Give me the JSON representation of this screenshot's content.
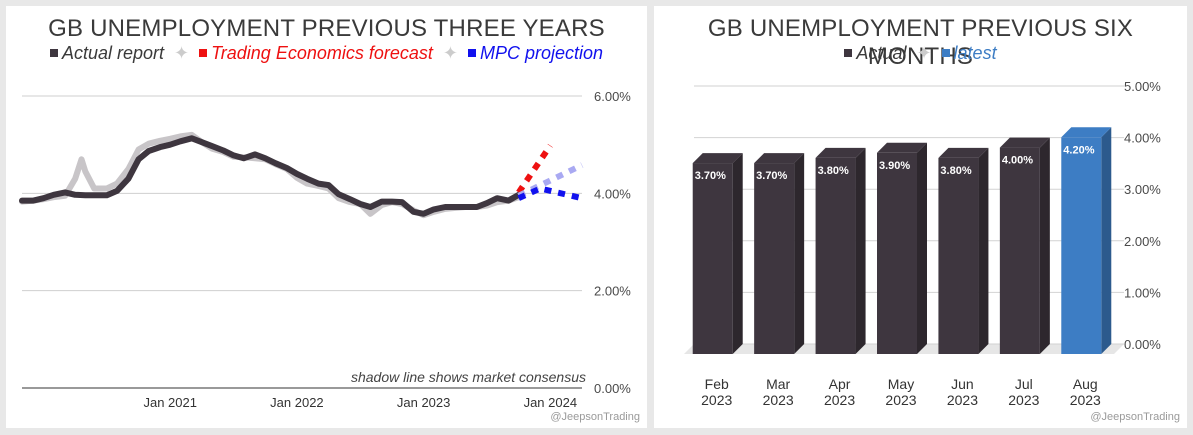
{
  "chart_data": [
    {
      "type": "line",
      "title": "GB UNEMPLOYMENT PREVIOUS THREE YEARS",
      "legend": [
        {
          "label": "Actual report",
          "color": "#3e363f"
        },
        {
          "label": "Trading Economics forecast",
          "color": "#ee1111"
        },
        {
          "label": "MPC projection",
          "color": "#1111ee"
        }
      ],
      "y_ticks": [
        "6.00%",
        "4.00%",
        "2.00%",
        "0.00%"
      ],
      "x_ticks": [
        {
          "label": "Jan 2021",
          "t": 2021.0
        },
        {
          "label": "Jan 2022",
          "t": 2022.0
        },
        {
          "label": "Jan 2023",
          "t": 2023.0
        },
        {
          "label": "Jan 2024",
          "t": 2024.0
        }
      ],
      "ylim": [
        0,
        6
      ],
      "xlim": [
        2019.83,
        2024.25
      ],
      "annotation": "shadow line shows market consensus",
      "watermark": "@JeepsonTrading",
      "series": [
        {
          "name": "Actual report",
          "color": "#3e363f",
          "points": [
            [
              2019.83,
              3.85
            ],
            [
              2019.92,
              3.85
            ],
            [
              2020.0,
              3.9
            ],
            [
              2020.08,
              3.97
            ],
            [
              2020.17,
              4.02
            ],
            [
              2020.25,
              3.97
            ],
            [
              2020.33,
              3.96
            ],
            [
              2020.42,
              3.96
            ],
            [
              2020.5,
              3.96
            ],
            [
              2020.58,
              4.05
            ],
            [
              2020.67,
              4.3
            ],
            [
              2020.75,
              4.7
            ],
            [
              2020.83,
              4.87
            ],
            [
              2020.92,
              4.95
            ],
            [
              2021.0,
              5.0
            ],
            [
              2021.08,
              5.07
            ],
            [
              2021.17,
              5.13
            ],
            [
              2021.25,
              5.05
            ],
            [
              2021.33,
              4.97
            ],
            [
              2021.42,
              4.88
            ],
            [
              2021.5,
              4.78
            ],
            [
              2021.58,
              4.72
            ],
            [
              2021.67,
              4.8
            ],
            [
              2021.75,
              4.72
            ],
            [
              2021.83,
              4.62
            ],
            [
              2021.92,
              4.52
            ],
            [
              2022.0,
              4.4
            ],
            [
              2022.08,
              4.3
            ],
            [
              2022.17,
              4.2
            ],
            [
              2022.25,
              4.17
            ],
            [
              2022.33,
              3.98
            ],
            [
              2022.42,
              3.88
            ],
            [
              2022.5,
              3.78
            ],
            [
              2022.58,
              3.72
            ],
            [
              2022.67,
              3.83
            ],
            [
              2022.75,
              3.83
            ],
            [
              2022.83,
              3.82
            ],
            [
              2022.92,
              3.62
            ],
            [
              2023.0,
              3.58
            ],
            [
              2023.08,
              3.67
            ],
            [
              2023.17,
              3.72
            ],
            [
              2023.25,
              3.72
            ],
            [
              2023.33,
              3.72
            ],
            [
              2023.42,
              3.72
            ],
            [
              2023.5,
              3.8
            ],
            [
              2023.58,
              3.9
            ],
            [
              2023.67,
              3.85
            ],
            [
              2023.75,
              3.97
            ]
          ]
        },
        {
          "name": "Market consensus",
          "color": "#c8c5c8",
          "points": [
            [
              2019.83,
              3.83
            ],
            [
              2019.92,
              3.85
            ],
            [
              2020.0,
              3.88
            ],
            [
              2020.08,
              3.92
            ],
            [
              2020.17,
              3.95
            ],
            [
              2020.25,
              4.3
            ],
            [
              2020.3,
              4.7
            ],
            [
              2020.33,
              4.45
            ],
            [
              2020.4,
              4.1
            ],
            [
              2020.5,
              4.1
            ],
            [
              2020.58,
              4.2
            ],
            [
              2020.67,
              4.5
            ],
            [
              2020.75,
              4.9
            ],
            [
              2020.83,
              5.02
            ],
            [
              2020.92,
              5.08
            ],
            [
              2021.0,
              5.12
            ],
            [
              2021.08,
              5.17
            ],
            [
              2021.17,
              5.2
            ],
            [
              2021.25,
              5.05
            ],
            [
              2021.33,
              4.92
            ],
            [
              2021.42,
              4.85
            ],
            [
              2021.5,
              4.75
            ],
            [
              2021.58,
              4.74
            ],
            [
              2021.67,
              4.72
            ],
            [
              2021.75,
              4.7
            ],
            [
              2021.83,
              4.6
            ],
            [
              2021.92,
              4.5
            ],
            [
              2022.0,
              4.32
            ],
            [
              2022.08,
              4.2
            ],
            [
              2022.17,
              4.15
            ],
            [
              2022.25,
              4.1
            ],
            [
              2022.33,
              3.9
            ],
            [
              2022.42,
              3.82
            ],
            [
              2022.5,
              3.78
            ],
            [
              2022.58,
              3.58
            ],
            [
              2022.67,
              3.76
            ],
            [
              2022.75,
              3.82
            ],
            [
              2022.83,
              3.78
            ],
            [
              2022.92,
              3.65
            ],
            [
              2023.0,
              3.55
            ],
            [
              2023.08,
              3.62
            ],
            [
              2023.17,
              3.68
            ],
            [
              2023.25,
              3.7
            ],
            [
              2023.33,
              3.72
            ],
            [
              2023.42,
              3.72
            ],
            [
              2023.5,
              3.75
            ],
            [
              2023.58,
              3.82
            ],
            [
              2023.67,
              3.85
            ],
            [
              2023.75,
              3.92
            ]
          ]
        }
      ],
      "projections": [
        {
          "name": "Trading Economics forecast",
          "color": "#ee1111",
          "points": [
            [
              2023.75,
              4.02
            ],
            [
              2024.0,
              4.98
            ]
          ]
        },
        {
          "name": "Market consensus",
          "color": "#a9a9f2",
          "points": [
            [
              2023.75,
              3.95
            ],
            [
              2024.25,
              4.58
            ]
          ]
        },
        {
          "name": "MPC projection",
          "color": "#1111ee",
          "points": [
            [
              2023.75,
              3.9
            ],
            [
              2023.92,
              4.1
            ],
            [
              2024.25,
              3.9
            ]
          ]
        }
      ]
    },
    {
      "type": "bar",
      "title": "GB UNEMPLOYMENT PREVIOUS SIX MONTHS",
      "legend": [
        {
          "label": "Actual",
          "color": "#3e363f"
        },
        {
          "label": "latest",
          "color": "#3d7dc4"
        }
      ],
      "categories": [
        {
          "month": "Feb",
          "year": "2023"
        },
        {
          "month": "Mar",
          "year": "2023"
        },
        {
          "month": "Apr",
          "year": "2023"
        },
        {
          "month": "May",
          "year": "2023"
        },
        {
          "month": "Jun",
          "year": "2023"
        },
        {
          "month": "Jul",
          "year": "2023"
        },
        {
          "month": "Aug",
          "year": "2023"
        }
      ],
      "values": [
        3.7,
        3.7,
        3.8,
        3.9,
        3.8,
        4.0,
        4.2
      ],
      "labels": [
        "3.70%",
        "3.70%",
        "3.80%",
        "3.90%",
        "3.80%",
        "4.00%",
        "4.20%"
      ],
      "bar_colors": [
        "#3e363f",
        "#3e363f",
        "#3e363f",
        "#3e363f",
        "#3e363f",
        "#3e363f",
        "#3d7dc4"
      ],
      "y_ticks": [
        "5.00%",
        "4.00%",
        "3.00%",
        "2.00%",
        "1.00%",
        "0.00%"
      ],
      "ylim": [
        0,
        5
      ],
      "watermark": "@JeepsonTrading"
    }
  ]
}
